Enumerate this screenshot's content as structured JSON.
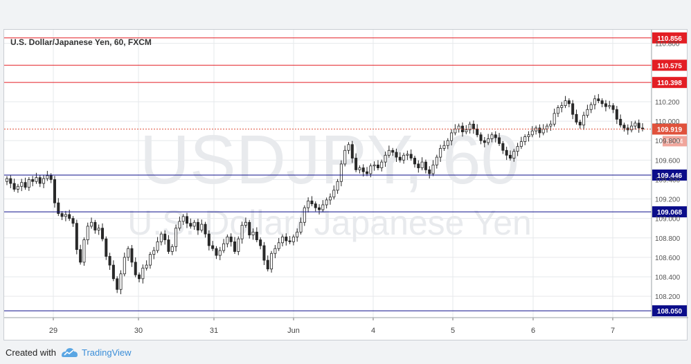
{
  "header": {
    "title": "U.S. Dollar/Japanese Yen, 60, FXCM"
  },
  "watermark": {
    "line1": "USDJPY, 60",
    "line2": "U.S. Dollar/ Japanese Yen"
  },
  "colors": {
    "resistance": "#e31e24",
    "support": "#0b0d8a",
    "up_candle": "#ffffff",
    "down_candle": "#2a2a2a",
    "wick": "#222222",
    "grid": "#e6e8eb",
    "current_price": "#e0523c",
    "countdown_bg": "#f0a59b",
    "watermark": "#e8eaed"
  },
  "footer": {
    "created_with": "Created with",
    "brand": "TradingView"
  },
  "chart_data": {
    "type": "candlestick",
    "title": "U.S. Dollar/Japanese Yen, 60, FXCM",
    "ylim": [
      107.98,
      110.94
    ],
    "y_ticks": [
      "110.800",
      "110.200",
      "110.000",
      "109.800",
      "109.600",
      "109.400",
      "109.200",
      "109.000",
      "108.800",
      "108.600",
      "108.400",
      "108.200"
    ],
    "x_ticks": [
      "29",
      "30",
      "31",
      "Jun",
      "4",
      "5",
      "6",
      "7"
    ],
    "grid": true,
    "horizontal_levels": [
      {
        "label": "110.856",
        "value": 110.856,
        "kind": "resistance"
      },
      {
        "label": "110.575",
        "value": 110.575,
        "kind": "resistance"
      },
      {
        "label": "110.398",
        "value": 110.398,
        "kind": "resistance"
      },
      {
        "label": "109.446",
        "value": 109.446,
        "kind": "support"
      },
      {
        "label": "109.068",
        "value": 109.068,
        "kind": "support"
      },
      {
        "label": "108.050",
        "value": 108.05,
        "kind": "support"
      }
    ],
    "current_price": {
      "label": "109.919",
      "value": 109.919,
      "countdown": "51:44"
    },
    "closes": [
      109.41,
      109.36,
      109.3,
      109.33,
      109.37,
      109.32,
      109.4,
      109.38,
      109.42,
      109.36,
      109.41,
      109.44,
      109.4,
      109.16,
      109.05,
      109.02,
      109.04,
      109.0,
      108.95,
      108.68,
      108.55,
      108.78,
      108.92,
      108.96,
      108.88,
      108.9,
      108.79,
      108.61,
      108.52,
      108.38,
      108.27,
      108.43,
      108.6,
      108.69,
      108.55,
      108.42,
      108.38,
      108.49,
      108.52,
      108.63,
      108.67,
      108.76,
      108.84,
      108.78,
      108.66,
      108.71,
      108.9,
      108.97,
      109.02,
      108.95,
      108.92,
      108.96,
      108.88,
      108.94,
      108.84,
      108.72,
      108.69,
      108.62,
      108.67,
      108.74,
      108.81,
      108.76,
      108.66,
      108.79,
      108.93,
      108.96,
      108.83,
      108.86,
      108.78,
      108.72,
      108.57,
      108.48,
      108.64,
      108.69,
      108.75,
      108.81,
      108.77,
      108.76,
      108.81,
      108.86,
      108.96,
      109.11,
      109.18,
      109.15,
      109.11,
      109.09,
      109.14,
      109.19,
      109.22,
      109.29,
      109.38,
      109.56,
      109.7,
      109.76,
      109.62,
      109.5,
      109.52,
      109.48,
      109.46,
      109.54,
      109.55,
      109.52,
      109.58,
      109.65,
      109.7,
      109.68,
      109.63,
      109.6,
      109.65,
      109.66,
      109.62,
      109.56,
      109.52,
      109.58,
      109.5,
      109.46,
      109.55,
      109.63,
      109.72,
      109.75,
      109.8,
      109.88,
      109.92,
      109.95,
      109.89,
      109.91,
      109.97,
      109.92,
      109.86,
      109.8,
      109.78,
      109.82,
      109.86,
      109.83,
      109.77,
      109.7,
      109.65,
      109.62,
      109.69,
      109.74,
      109.79,
      109.84,
      109.86,
      109.9,
      109.93,
      109.88,
      109.92,
      109.95,
      109.97,
      110.08,
      110.14,
      110.16,
      110.21,
      110.18,
      110.07,
      109.99,
      109.96,
      110.06,
      110.12,
      110.17,
      110.23,
      110.21,
      110.18,
      110.15,
      110.16,
      110.12,
      110.02,
      109.96,
      109.93,
      109.91,
      109.95,
      109.98,
      109.93,
      109.92
    ]
  }
}
